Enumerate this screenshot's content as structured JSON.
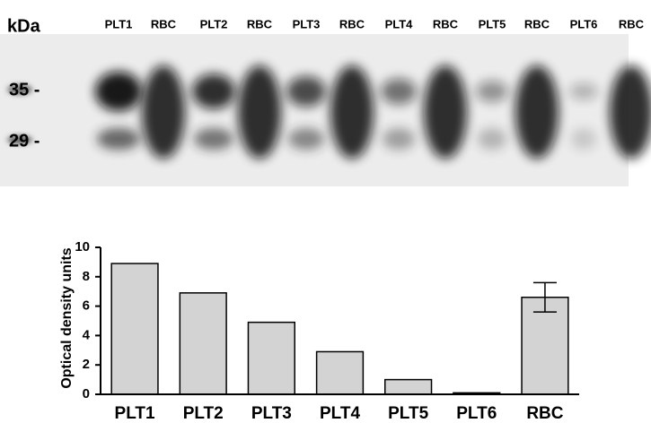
{
  "blot": {
    "unit_label": "kDa",
    "lanes": [
      "PLT1",
      "RBC",
      "PLT2",
      "RBC",
      "PLT3",
      "RBC",
      "PLT4",
      "RBC",
      "PLT5",
      "RBC",
      "PLT6",
      "RBC"
    ],
    "markers": [
      "35 -",
      "29 -"
    ]
  },
  "chart_data": {
    "type": "bar",
    "y_label": "Optical density units",
    "categories": [
      "PLT1",
      "PLT2",
      "PLT3",
      "PLT4",
      "PLT5",
      "PLT6",
      "RBC"
    ],
    "values": [
      8.9,
      6.9,
      4.9,
      2.9,
      1.0,
      0.1,
      6.6
    ],
    "errors": [
      null,
      null,
      null,
      null,
      null,
      null,
      1.0
    ],
    "color": "#d3d3d3",
    "ylim": [
      0,
      10
    ],
    "yticks": [
      0,
      2,
      4,
      6,
      8,
      10
    ]
  }
}
